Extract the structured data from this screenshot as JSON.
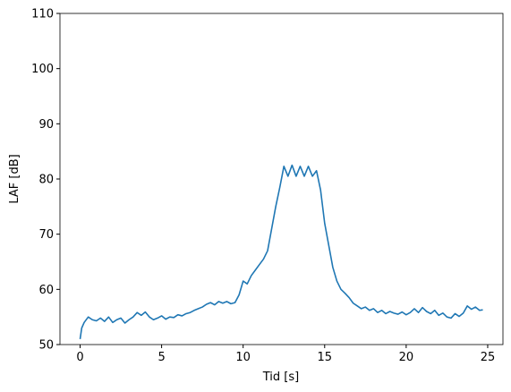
{
  "chart_data": {
    "type": "line",
    "x_label": "Tid [s]",
    "y_label": "LAF [dB]",
    "xlim": [
      -1.235,
      25.935
    ],
    "ylim": [
      50,
      110
    ],
    "xticks": [
      0,
      5,
      10,
      15,
      20,
      25
    ],
    "yticks": [
      50,
      60,
      70,
      80,
      90,
      100,
      110
    ],
    "series": [
      {
        "color": "#1f77b4",
        "x": [
          0,
          0.1,
          0.25,
          0.5,
          0.75,
          1,
          1.25,
          1.5,
          1.75,
          2,
          2.25,
          2.5,
          2.75,
          3,
          3.25,
          3.5,
          3.75,
          4,
          4.25,
          4.5,
          4.75,
          5,
          5.25,
          5.5,
          5.75,
          6,
          6.25,
          6.5,
          6.75,
          7,
          7.25,
          7.5,
          7.75,
          8,
          8.25,
          8.5,
          8.75,
          9,
          9.25,
          9.5,
          9.75,
          10,
          10.25,
          10.5,
          10.75,
          11,
          11.25,
          11.5,
          11.75,
          12,
          12.25,
          12.5,
          12.75,
          13,
          13.25,
          13.5,
          13.75,
          14,
          14.25,
          14.5,
          14.75,
          15,
          15.25,
          15.5,
          15.75,
          16,
          16.25,
          16.5,
          16.75,
          17,
          17.25,
          17.5,
          17.75,
          18,
          18.25,
          18.5,
          18.75,
          19,
          19.25,
          19.5,
          19.75,
          20,
          20.25,
          20.5,
          20.75,
          21,
          21.25,
          21.5,
          21.75,
          22,
          22.25,
          22.5,
          22.75,
          23,
          23.25,
          23.5,
          23.75,
          24,
          24.25,
          24.5,
          24.7
        ],
        "values": [
          51,
          53,
          54,
          55,
          54.5,
          54.3,
          54.8,
          54.2,
          55,
          54,
          54.5,
          54.8,
          53.9,
          54.5,
          55,
          55.8,
          55.3,
          55.9,
          55,
          54.5,
          54.8,
          55.2,
          54.6,
          55,
          54.9,
          55.4,
          55.2,
          55.6,
          55.8,
          56.2,
          56.5,
          56.8,
          57.3,
          57.6,
          57.2,
          57.8,
          57.5,
          57.8,
          57.4,
          57.6,
          59,
          61.5,
          61,
          62.5,
          63.5,
          64.5,
          65.5,
          67,
          71,
          75,
          78.5,
          82.3,
          80.5,
          82.5,
          80.5,
          82.3,
          80.5,
          82.3,
          80.5,
          81.5,
          78,
          72,
          68,
          64,
          61.5,
          60,
          59.3,
          58.5,
          57.5,
          57,
          56.5,
          56.8,
          56.2,
          56.5,
          55.8,
          56.2,
          55.6,
          56,
          55.7,
          55.5,
          55.9,
          55.4,
          55.8,
          56.5,
          55.8,
          56.7,
          56,
          55.6,
          56.2,
          55.3,
          55.7,
          55,
          54.8,
          55.6,
          55.1,
          55.7,
          57,
          56.4,
          56.8,
          56.2,
          56.3
        ]
      }
    ]
  }
}
